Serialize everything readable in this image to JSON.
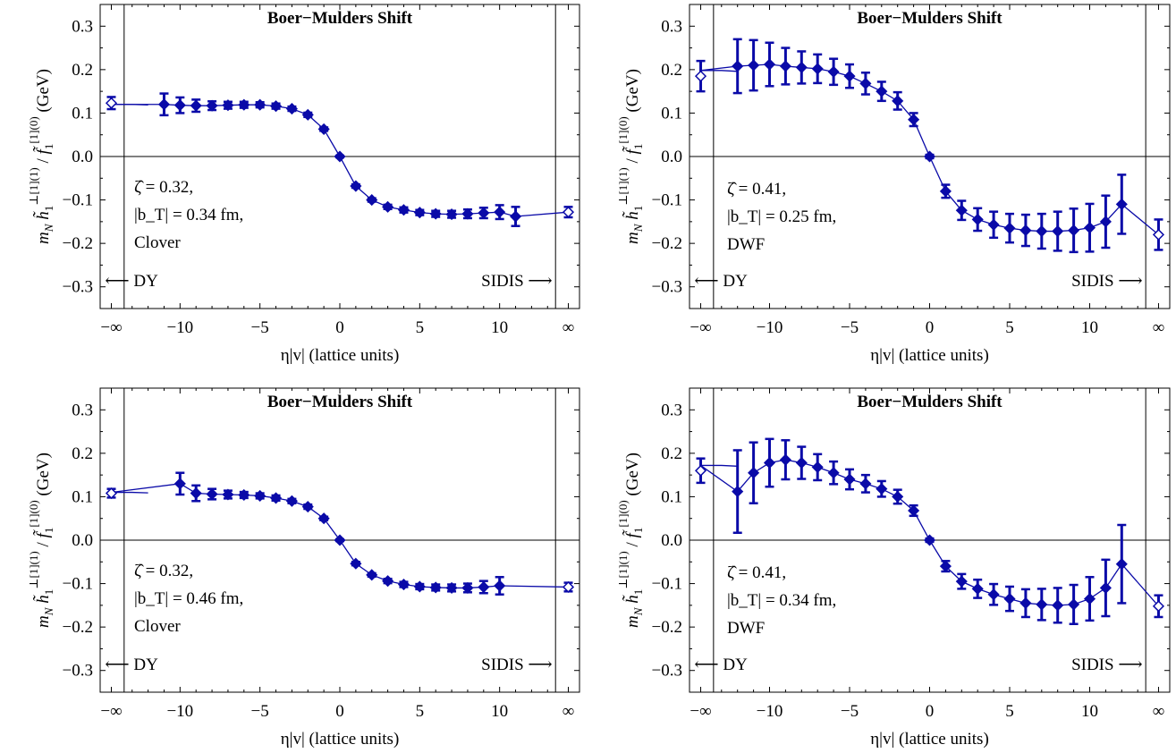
{
  "colors": {
    "series": "#0a0aa8",
    "axis": "#000000"
  },
  "chart_data": [
    {
      "type": "scatter",
      "title": "Boer−Mulders Shift",
      "xlabel": "η|v|  (lattice units)",
      "ylabel": "m_N h̃₁^{⊥[1](1)} / f̃₁^{[1](0)} (GeV)",
      "ylim": [
        -0.35,
        0.35
      ],
      "xlim": [
        -15,
        15
      ],
      "x_ticks": [
        "−∞",
        "−10",
        "−5",
        "0",
        "5",
        "10",
        "∞"
      ],
      "y_ticks": [
        "−0.3",
        "−0.2",
        "−0.1",
        "0.0",
        "0.1",
        "0.2",
        "0.3"
      ],
      "annotations": [
        "ζ̂ = 0.32,",
        "|b_T| = 0.34 fm,",
        "Clover"
      ],
      "arrows": [
        "⟵ DY",
        "SIDIS ⟶"
      ],
      "asymptote": 0.12,
      "points": [
        {
          "x": -11,
          "y": 0.12,
          "err": 0.025
        },
        {
          "x": -10,
          "y": 0.118,
          "err": 0.018
        },
        {
          "x": -9,
          "y": 0.117,
          "err": 0.014
        },
        {
          "x": -8,
          "y": 0.117,
          "err": 0.01
        },
        {
          "x": -7,
          "y": 0.118,
          "err": 0.008
        },
        {
          "x": -6,
          "y": 0.119,
          "err": 0.007
        },
        {
          "x": -5,
          "y": 0.119,
          "err": 0.006
        },
        {
          "x": -4,
          "y": 0.116,
          "err": 0.006
        },
        {
          "x": -3,
          "y": 0.11,
          "err": 0.005
        },
        {
          "x": -2,
          "y": 0.096,
          "err": 0.005
        },
        {
          "x": -1,
          "y": 0.063,
          "err": 0.004
        },
        {
          "x": 0,
          "y": 0.0,
          "err": 0.002
        },
        {
          "x": 1,
          "y": -0.068,
          "err": 0.004
        },
        {
          "x": 2,
          "y": -0.1,
          "err": 0.004
        },
        {
          "x": 3,
          "y": -0.116,
          "err": 0.005
        },
        {
          "x": 4,
          "y": -0.123,
          "err": 0.006
        },
        {
          "x": 5,
          "y": -0.129,
          "err": 0.006
        },
        {
          "x": 6,
          "y": -0.132,
          "err": 0.007
        },
        {
          "x": 7,
          "y": -0.133,
          "err": 0.008
        },
        {
          "x": 8,
          "y": -0.132,
          "err": 0.01
        },
        {
          "x": 9,
          "y": -0.13,
          "err": 0.012
        },
        {
          "x": 10,
          "y": -0.128,
          "err": 0.016
        },
        {
          "x": 11,
          "y": -0.138,
          "err": 0.022
        }
      ],
      "asym_points": [
        {
          "x": "-inf",
          "y": 0.123,
          "err": 0.014
        },
        {
          "x": "inf",
          "y": -0.128,
          "err": 0.012
        }
      ]
    },
    {
      "type": "scatter",
      "title": "Boer−Mulders Shift",
      "xlabel": "η|v|  (lattice units)",
      "ylabel": "m_N h̃₁^{⊥[1](1)} / f̃₁^{[1](0)} (GeV)",
      "ylim": [
        -0.35,
        0.35
      ],
      "xlim": [
        -15,
        15
      ],
      "x_ticks": [
        "−∞",
        "−10",
        "−5",
        "0",
        "5",
        "10",
        "∞"
      ],
      "y_ticks": [
        "−0.3",
        "−0.2",
        "−0.1",
        "0.0",
        "0.1",
        "0.2",
        "0.3"
      ],
      "annotations": [
        "ζ̂ = 0.41,",
        "|b_T| = 0.25 fm,",
        "DWF"
      ],
      "arrows": [
        "⟵ DY",
        "SIDIS ⟶"
      ],
      "asymptote": 0.198,
      "points": [
        {
          "x": -12,
          "y": 0.208,
          "err": 0.062
        },
        {
          "x": -11,
          "y": 0.21,
          "err": 0.058
        },
        {
          "x": -10,
          "y": 0.212,
          "err": 0.05
        },
        {
          "x": -9,
          "y": 0.208,
          "err": 0.042
        },
        {
          "x": -8,
          "y": 0.205,
          "err": 0.037
        },
        {
          "x": -7,
          "y": 0.202,
          "err": 0.033
        },
        {
          "x": -6,
          "y": 0.195,
          "err": 0.03
        },
        {
          "x": -5,
          "y": 0.185,
          "err": 0.027
        },
        {
          "x": -4,
          "y": 0.168,
          "err": 0.025
        },
        {
          "x": -3,
          "y": 0.15,
          "err": 0.022
        },
        {
          "x": -2,
          "y": 0.128,
          "err": 0.02
        },
        {
          "x": -1,
          "y": 0.085,
          "err": 0.015
        },
        {
          "x": 0,
          "y": 0.0,
          "err": 0.004
        },
        {
          "x": 1,
          "y": -0.08,
          "err": 0.015
        },
        {
          "x": 2,
          "y": -0.124,
          "err": 0.022
        },
        {
          "x": 3,
          "y": -0.145,
          "err": 0.026
        },
        {
          "x": 4,
          "y": -0.157,
          "err": 0.03
        },
        {
          "x": 5,
          "y": -0.165,
          "err": 0.033
        },
        {
          "x": 6,
          "y": -0.17,
          "err": 0.036
        },
        {
          "x": 7,
          "y": -0.172,
          "err": 0.04
        },
        {
          "x": 8,
          "y": -0.172,
          "err": 0.045
        },
        {
          "x": 9,
          "y": -0.17,
          "err": 0.05
        },
        {
          "x": 10,
          "y": -0.164,
          "err": 0.055
        },
        {
          "x": 11,
          "y": -0.15,
          "err": 0.06
        },
        {
          "x": 12,
          "y": -0.11,
          "err": 0.068
        }
      ],
      "asym_points": [
        {
          "x": "-inf",
          "y": 0.185,
          "err": 0.035
        },
        {
          "x": "inf",
          "y": -0.18,
          "err": 0.035
        }
      ]
    },
    {
      "type": "scatter",
      "title": "Boer−Mulders Shift",
      "xlabel": "η|v|  (lattice units)",
      "ylabel": "m_N h̃₁^{⊥[1](1)} / f̃₁^{[1](0)} (GeV)",
      "ylim": [
        -0.35,
        0.35
      ],
      "xlim": [
        -15,
        15
      ],
      "x_ticks": [
        "−∞",
        "−10",
        "−5",
        "0",
        "5",
        "10",
        "∞"
      ],
      "y_ticks": [
        "−0.3",
        "−0.2",
        "−0.1",
        "0.0",
        "0.1",
        "0.2",
        "0.3"
      ],
      "annotations": [
        "ζ̂ = 0.32,",
        "|b_T| = 0.46 fm,",
        "Clover"
      ],
      "arrows": [
        "⟵ DY",
        "SIDIS ⟶"
      ],
      "asymptote": 0.11,
      "points": [
        {
          "x": -10,
          "y": 0.13,
          "err": 0.025
        },
        {
          "x": -9,
          "y": 0.108,
          "err": 0.018
        },
        {
          "x": -8,
          "y": 0.106,
          "err": 0.012
        },
        {
          "x": -7,
          "y": 0.105,
          "err": 0.009
        },
        {
          "x": -6,
          "y": 0.104,
          "err": 0.007
        },
        {
          "x": -5,
          "y": 0.102,
          "err": 0.006
        },
        {
          "x": -4,
          "y": 0.097,
          "err": 0.006
        },
        {
          "x": -3,
          "y": 0.09,
          "err": 0.005
        },
        {
          "x": -2,
          "y": 0.077,
          "err": 0.005
        },
        {
          "x": -1,
          "y": 0.05,
          "err": 0.004
        },
        {
          "x": 0,
          "y": 0.0,
          "err": 0.002
        },
        {
          "x": 1,
          "y": -0.054,
          "err": 0.004
        },
        {
          "x": 2,
          "y": -0.08,
          "err": 0.004
        },
        {
          "x": 3,
          "y": -0.094,
          "err": 0.005
        },
        {
          "x": 4,
          "y": -0.102,
          "err": 0.006
        },
        {
          "x": 5,
          "y": -0.107,
          "err": 0.006
        },
        {
          "x": 6,
          "y": -0.109,
          "err": 0.007
        },
        {
          "x": 7,
          "y": -0.11,
          "err": 0.008
        },
        {
          "x": 8,
          "y": -0.11,
          "err": 0.01
        },
        {
          "x": 9,
          "y": -0.108,
          "err": 0.014
        },
        {
          "x": 10,
          "y": -0.105,
          "err": 0.02
        }
      ],
      "asym_points": [
        {
          "x": "-inf",
          "y": 0.108,
          "err": 0.01
        },
        {
          "x": "inf",
          "y": -0.108,
          "err": 0.01
        }
      ]
    },
    {
      "type": "scatter",
      "title": "Boer−Mulders Shift",
      "xlabel": "η|v|  (lattice units)",
      "ylabel": "m_N h̃₁^{⊥[1](1)} / f̃₁^{[1](0)} (GeV)",
      "ylim": [
        -0.35,
        0.35
      ],
      "xlim": [
        -15,
        15
      ],
      "x_ticks": [
        "−∞",
        "−10",
        "−5",
        "0",
        "5",
        "10",
        "∞"
      ],
      "y_ticks": [
        "−0.3",
        "−0.2",
        "−0.1",
        "0.0",
        "0.1",
        "0.2",
        "0.3"
      ],
      "annotations": [
        "ζ̂ = 0.41,",
        "|b_T| = 0.34 fm,",
        "DWF"
      ],
      "arrows": [
        "⟵ DY",
        "SIDIS ⟶"
      ],
      "asymptote": 0.172,
      "points": [
        {
          "x": -12,
          "y": 0.112,
          "err": 0.095
        },
        {
          "x": -11,
          "y": 0.155,
          "err": 0.07
        },
        {
          "x": -10,
          "y": 0.178,
          "err": 0.055
        },
        {
          "x": -9,
          "y": 0.185,
          "err": 0.045
        },
        {
          "x": -8,
          "y": 0.178,
          "err": 0.037
        },
        {
          "x": -7,
          "y": 0.168,
          "err": 0.03
        },
        {
          "x": -6,
          "y": 0.155,
          "err": 0.026
        },
        {
          "x": -5,
          "y": 0.14,
          "err": 0.023
        },
        {
          "x": -4,
          "y": 0.13,
          "err": 0.02
        },
        {
          "x": -3,
          "y": 0.118,
          "err": 0.018
        },
        {
          "x": -2,
          "y": 0.1,
          "err": 0.016
        },
        {
          "x": -1,
          "y": 0.068,
          "err": 0.012
        },
        {
          "x": 0,
          "y": 0.0,
          "err": 0.004
        },
        {
          "x": 1,
          "y": -0.06,
          "err": 0.012
        },
        {
          "x": 2,
          "y": -0.095,
          "err": 0.017
        },
        {
          "x": 3,
          "y": -0.112,
          "err": 0.021
        },
        {
          "x": 4,
          "y": -0.125,
          "err": 0.024
        },
        {
          "x": 5,
          "y": -0.135,
          "err": 0.028
        },
        {
          "x": 6,
          "y": -0.145,
          "err": 0.032
        },
        {
          "x": 7,
          "y": -0.148,
          "err": 0.036
        },
        {
          "x": 8,
          "y": -0.15,
          "err": 0.04
        },
        {
          "x": 9,
          "y": -0.148,
          "err": 0.045
        },
        {
          "x": 10,
          "y": -0.135,
          "err": 0.05
        },
        {
          "x": 11,
          "y": -0.11,
          "err": 0.065
        },
        {
          "x": 12,
          "y": -0.055,
          "err": 0.09
        }
      ],
      "asym_points": [
        {
          "x": "-inf",
          "y": 0.16,
          "err": 0.028
        },
        {
          "x": "inf",
          "y": -0.152,
          "err": 0.025
        }
      ]
    }
  ]
}
